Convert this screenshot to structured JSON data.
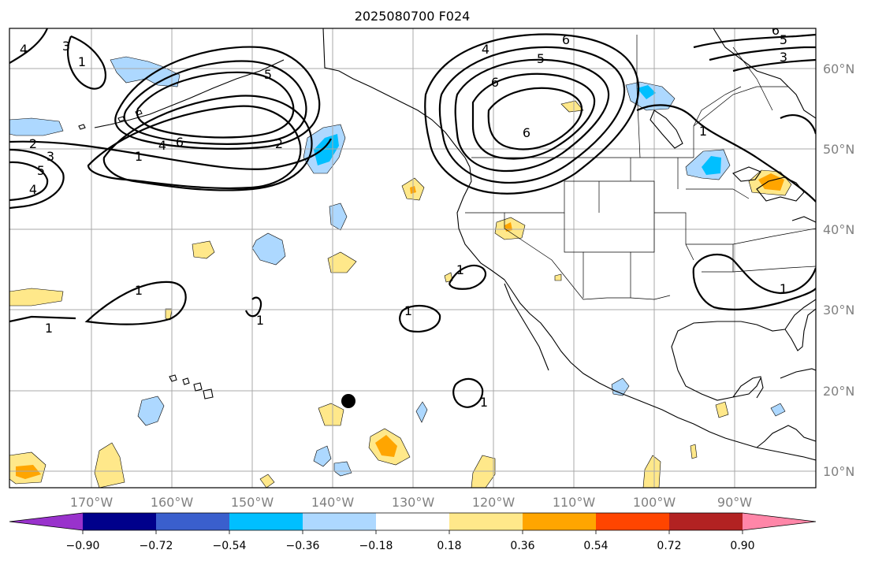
{
  "title": "2025080700 F024",
  "lat_labels": [
    "60°N",
    "50°N",
    "40°N",
    "30°N",
    "20°N",
    "10°N"
  ],
  "lon_labels": [
    "170°W",
    "160°W",
    "150°W",
    "140°W",
    "130°W",
    "120°W",
    "110°W",
    "100°W",
    "90°W"
  ],
  "colorbar": {
    "ticks": [
      "−0.90",
      "−0.72",
      "−0.54",
      "−0.36",
      "−0.18",
      "0.18",
      "0.36",
      "0.54",
      "0.72",
      "0.90"
    ],
    "colors": [
      "#9932cc",
      "#00008b",
      "#3a5fcd",
      "#00bfff",
      "#add8ff",
      "#ffffff",
      "#ffe88a",
      "#ffa500",
      "#ff4500",
      "#b22222",
      "#ff86a8"
    ]
  },
  "contour_labels": [
    "1",
    "2",
    "3",
    "4",
    "5",
    "6"
  ],
  "colors": {
    "light_blue": "#add8ff",
    "blue": "#00bfff",
    "light_yellow": "#ffe88a",
    "orange": "#ffa500"
  },
  "marker": "black-dot"
}
